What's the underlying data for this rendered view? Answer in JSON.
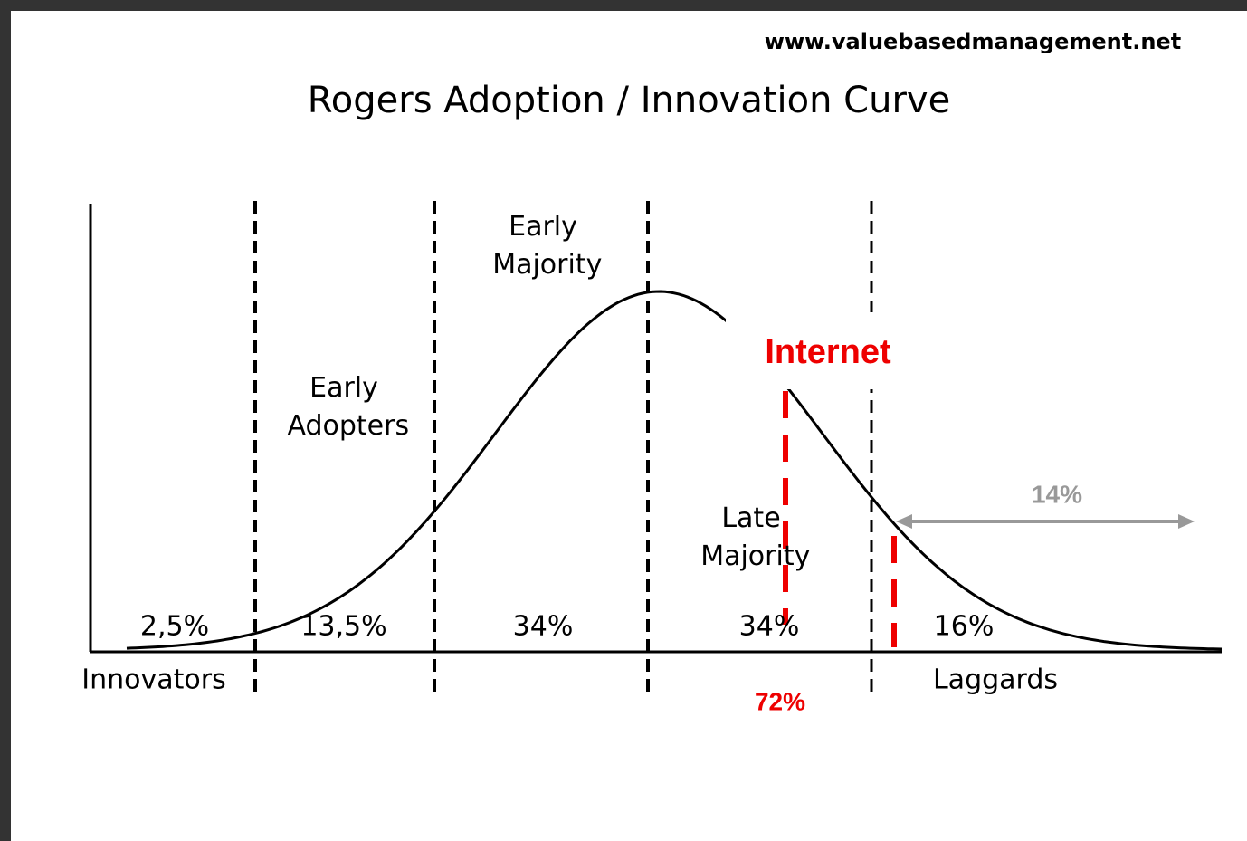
{
  "source": "www.valuebasedmanagement.net",
  "title": "Rogers Adoption / Innovation Curve",
  "segments": [
    {
      "name": "Innovators",
      "share": "2,5%"
    },
    {
      "name": "Early Adopters",
      "share": "13,5%"
    },
    {
      "name": "Early Majority",
      "share": "34%"
    },
    {
      "name": "Late Majority",
      "share": "34%"
    },
    {
      "name": "Laggards",
      "share": "16%"
    }
  ],
  "annotations": {
    "marker": "Internet",
    "adoption": "72%",
    "remaining": "14%"
  }
}
